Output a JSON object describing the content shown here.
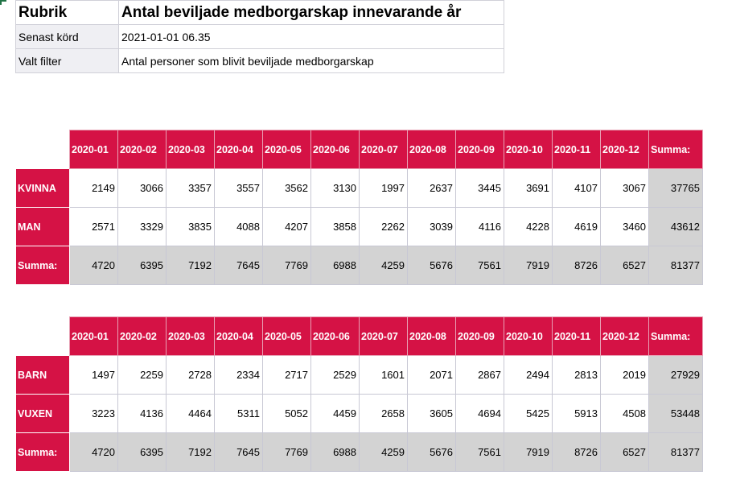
{
  "info": {
    "title_label": "Rubrik",
    "title_value": "Antal beviljade medborgarskap innevarande år",
    "last_run_label": "Senast körd",
    "last_run_value": "2021-01-01 06.35",
    "filter_label": "Valt filter",
    "filter_value": "Antal personer som blivit beviljade medborgarskap"
  },
  "colors": {
    "accent": "#d51245",
    "sum_bg": "#d3d3d3"
  },
  "tables": [
    {
      "headers": [
        "2020-01",
        "2020-02",
        "2020-03",
        "2020-04",
        "2020-05",
        "2020-06",
        "2020-07",
        "2020-08",
        "2020-09",
        "2020-10",
        "2020-11",
        "2020-12",
        "Summa:"
      ],
      "rows": [
        {
          "label": "KVINNA",
          "values": [
            "2149",
            "3066",
            "3357",
            "3557",
            "3562",
            "3130",
            "1997",
            "2637",
            "3445",
            "3691",
            "4107",
            "3067",
            "37765"
          ]
        },
        {
          "label": "MAN",
          "values": [
            "2571",
            "3329",
            "3835",
            "4088",
            "4207",
            "3858",
            "2262",
            "3039",
            "4116",
            "4228",
            "4619",
            "3460",
            "43612"
          ]
        },
        {
          "label": "Summa:",
          "values": [
            "4720",
            "6395",
            "7192",
            "7645",
            "7769",
            "6988",
            "4259",
            "5676",
            "7561",
            "7919",
            "8726",
            "6527",
            "81377"
          ]
        }
      ]
    },
    {
      "headers": [
        "2020-01",
        "2020-02",
        "2020-03",
        "2020-04",
        "2020-05",
        "2020-06",
        "2020-07",
        "2020-08",
        "2020-09",
        "2020-10",
        "2020-11",
        "2020-12",
        "Summa:"
      ],
      "rows": [
        {
          "label": "BARN",
          "values": [
            "1497",
            "2259",
            "2728",
            "2334",
            "2717",
            "2529",
            "1601",
            "2071",
            "2867",
            "2494",
            "2813",
            "2019",
            "27929"
          ]
        },
        {
          "label": "VUXEN",
          "values": [
            "3223",
            "4136",
            "4464",
            "5311",
            "5052",
            "4459",
            "2658",
            "3605",
            "4694",
            "5425",
            "5913",
            "4508",
            "53448"
          ]
        },
        {
          "label": "Summa:",
          "values": [
            "4720",
            "6395",
            "7192",
            "7645",
            "7769",
            "6988",
            "4259",
            "5676",
            "7561",
            "7919",
            "8726",
            "6527",
            "81377"
          ]
        }
      ]
    }
  ]
}
